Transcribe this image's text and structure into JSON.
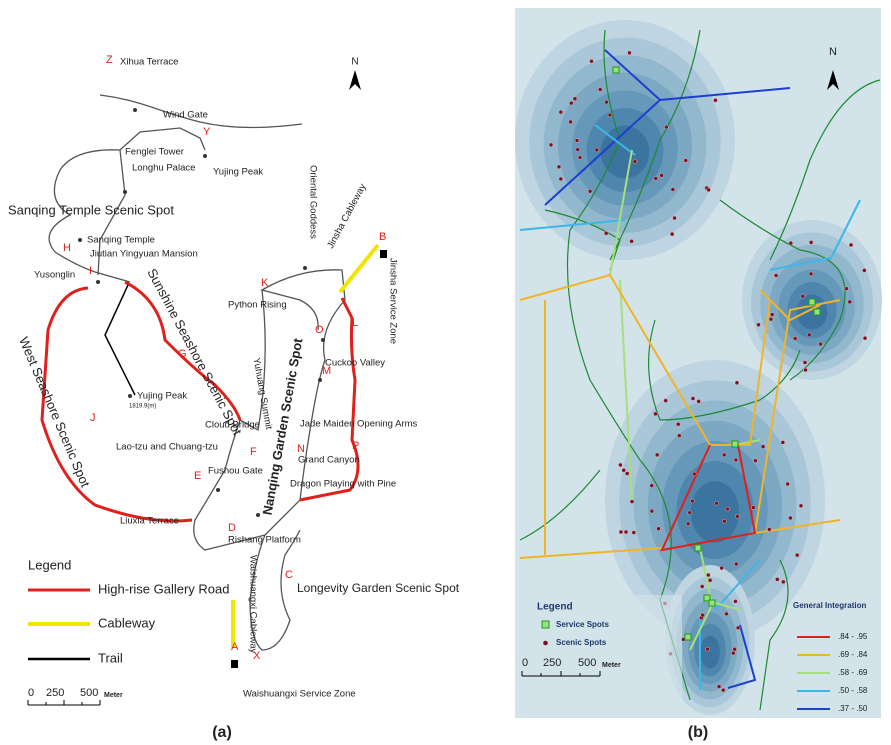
{
  "panel_a": {
    "north": "N",
    "places": [
      "Xihua Terrace",
      "Wind Gate",
      "Yujing Peak",
      "Fenglei Tower",
      "Longhu Palace",
      "Sanqing Temple",
      "Jiutian Yingyuan Mansion",
      "Yusonglin",
      "Yujing Peak",
      "Cloud Bridge",
      "Lao-tzu and Chuang-tzu",
      "Fushou Gate",
      "Liuxia Terrace",
      "Rishang Platform",
      "Python Rising",
      "Cuckoo Valley",
      "Jade Maiden Opening Arms",
      "Grand Canyon",
      "Dragon Playing with Pine",
      "Waishuangxi Service Zone",
      "Oriental Goddess",
      "Jinsha Cableway",
      "Jinsha Service Zone",
      "Yuhuang Summit",
      "Waishuangxi Cableway"
    ],
    "elevation": "1819.9(m)",
    "areas": [
      "Sanqing Temple Scenic Spot",
      "Sunshine Seashore Scenic Spot",
      "West Seashore Scenic Spot",
      "Nanqing Garden Scenic Spot",
      "Longevity Garden Scenic Spot"
    ],
    "letters": [
      "Z",
      "Y",
      "H",
      "I",
      "G",
      "J",
      "E",
      "D",
      "F",
      "K",
      "O",
      "L",
      "M",
      "N",
      "P",
      "B",
      "C",
      "A",
      "X"
    ],
    "legend": {
      "title": "Legend",
      "items": [
        "High-rise Gallery Road",
        "Cableway",
        "Trail"
      ]
    },
    "scale": {
      "ticks": [
        "0",
        "250",
        "500"
      ],
      "unit": "Meter"
    },
    "caption": "(a)"
  },
  "panel_b": {
    "north": "N",
    "legend": {
      "title": "Legend",
      "items": [
        "Service Spots",
        "Scenic Spots"
      ]
    },
    "integration": {
      "title": "General Integration",
      "ranges": [
        ".84 - .95",
        ".69 - .84",
        ".58 - .69",
        ".50 - .58",
        ".37 - .50"
      ]
    },
    "scale": {
      "ticks": [
        "0",
        "250",
        "500"
      ],
      "unit": "Meter"
    },
    "caption": "(b)"
  }
}
